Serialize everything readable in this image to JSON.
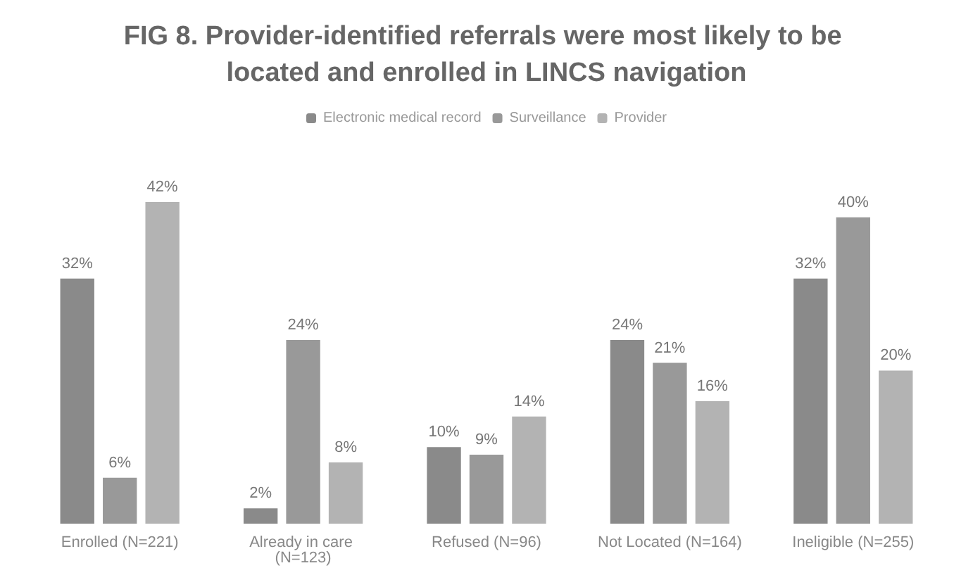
{
  "chart_data": {
    "type": "bar",
    "title": "FIG 8. Provider-identified referrals were most likely to be located and enrolled in LINCS navigation",
    "categories": [
      "Enrolled (N=221)",
      "Already in care (N=123)",
      "Refused (N=96)",
      "Not Located (N=164)",
      "Ineligible (N=255)"
    ],
    "series": [
      {
        "name": "Electronic medical record",
        "color": "#8a8a8a",
        "values": [
          32,
          2,
          10,
          24,
          32
        ],
        "value_labels": [
          "32%",
          "2%",
          "10%",
          "24%",
          "32%"
        ]
      },
      {
        "name": "Surveillance",
        "color": "#999999",
        "values": [
          6,
          24,
          9,
          21,
          40
        ],
        "value_labels": [
          "6%",
          "24%",
          "9%",
          "21%",
          "40%"
        ]
      },
      {
        "name": "Provider",
        "color": "#b3b3b3",
        "values": [
          42,
          8,
          14,
          16,
          20
        ],
        "value_labels": [
          "42%",
          "8%",
          "14%",
          "16%",
          "20%"
        ]
      }
    ],
    "legend": "top"
  }
}
